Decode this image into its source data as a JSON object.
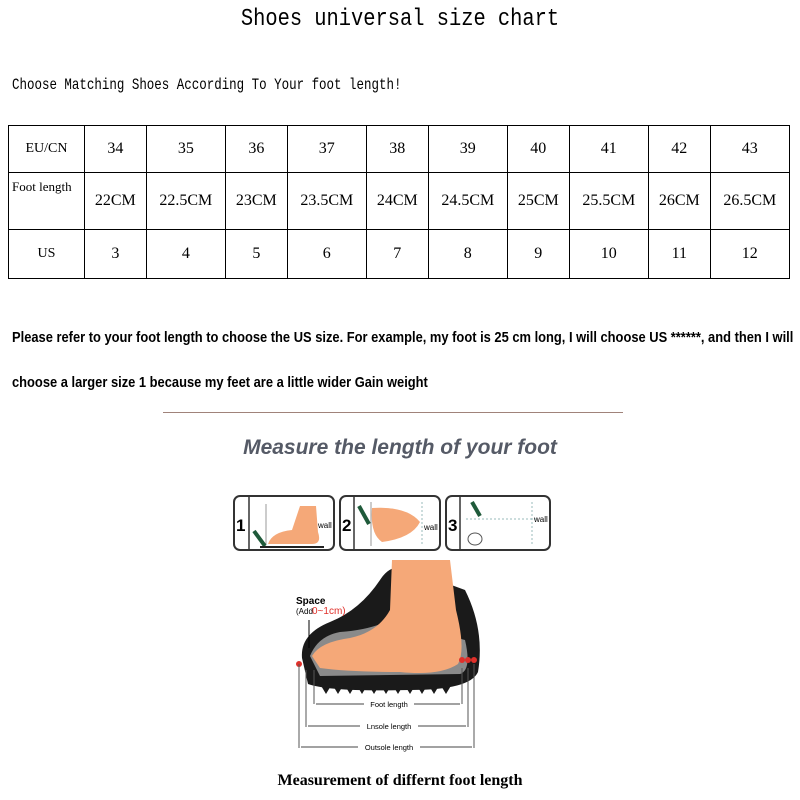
{
  "title": "Shoes universal size chart",
  "subtitle": "Choose Matching Shoes According To Your foot length!",
  "table": {
    "rows": [
      {
        "label": "EU/CN",
        "values": [
          "34",
          "35",
          "36",
          "37",
          "38",
          "39",
          "40",
          "41",
          "42",
          "43"
        ]
      },
      {
        "label": "Foot length",
        "values": [
          "22CM",
          "22.5CM",
          "23CM",
          "23.5CM",
          "24CM",
          "24.5CM",
          "25CM",
          "25.5CM",
          "26CM",
          "26.5CM"
        ]
      },
      {
        "label": "US",
        "values": [
          "3",
          "4",
          "5",
          "6",
          "7",
          "8",
          "9",
          "10",
          "11",
          "12"
        ]
      }
    ]
  },
  "note_line1": "Please refer to your foot length to choose the US size. For example, my foot is 25 cm long, I will choose US ******, and then I will",
  "note_line2": "choose a larger size 1 because my feet are a little wider Gain weight",
  "measure_heading": "Measure the length of your foot",
  "steps": [
    {
      "num": "1",
      "wall": "wall"
    },
    {
      "num": "2",
      "wall": "wall"
    },
    {
      "num": "3",
      "wall": "wall"
    }
  ],
  "diagram": {
    "space_label": "Space",
    "add_label": "(Add",
    "add_range": "0~1cm)",
    "foot_length": "Foot length",
    "insole_length": "Lnsole length",
    "outsole_length": "Outsole length"
  },
  "caption": "Measurement of differnt foot length",
  "colors": {
    "skin": "#f5a878",
    "accent_red": "#e0302a",
    "heading": "#555a66"
  }
}
